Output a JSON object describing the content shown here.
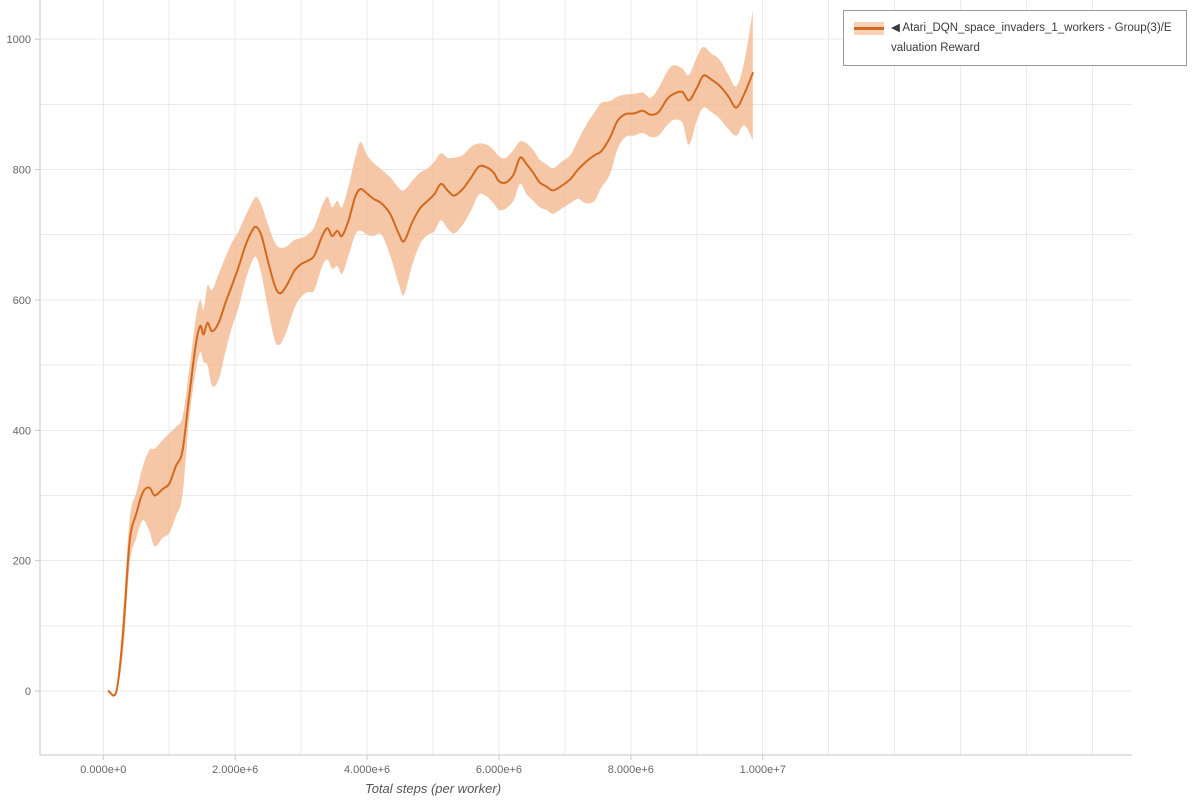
{
  "chart_data": {
    "type": "line",
    "title": "",
    "xlabel": "Total steps (per worker)",
    "ylabel": "",
    "grid": true,
    "legend": {
      "position": "top-right",
      "collapse_icon": "◀",
      "label": "Atari_DQN_space_invaders_1_workers - Group(3)/Evaluation Reward"
    },
    "colors": {
      "line": "#d2691e",
      "band": "#f1b488",
      "band_opacity": 0.75,
      "grid": "#e9e9e9",
      "axis": "#c6c6c6",
      "tick_text": "#666666",
      "legend_border": "#9b9b9b"
    },
    "axes": {
      "x": {
        "min": -0.96,
        "max": 15.6,
        "grid_step": 1,
        "ticks": [
          {
            "v": 0,
            "label": "0.000e+0"
          },
          {
            "v": 2,
            "label": "2.000e+6"
          },
          {
            "v": 4,
            "label": "4.000e+6"
          },
          {
            "v": 6,
            "label": "6.000e+6"
          },
          {
            "v": 8,
            "label": "8.000e+6"
          },
          {
            "v": 10,
            "label": "1.000e+7"
          }
        ]
      },
      "y": {
        "min": -98,
        "max": 1060,
        "grid_step": 100,
        "ticks": [
          0,
          200,
          400,
          600,
          800,
          1000
        ]
      }
    },
    "series": [
      {
        "name": "Atari_DQN_space_invaders_1_workers - Group(3)/Evaluation Reward",
        "x_unit": "1e6 steps",
        "x": [
          0.08,
          0.2,
          0.3,
          0.4,
          0.5,
          0.6,
          0.7,
          0.78,
          0.9,
          1.0,
          1.1,
          1.2,
          1.3,
          1.4,
          1.47,
          1.52,
          1.58,
          1.65,
          1.75,
          1.85,
          1.95,
          2.05,
          2.15,
          2.25,
          2.32,
          2.4,
          2.5,
          2.6,
          2.68,
          2.78,
          2.9,
          3.0,
          3.1,
          3.2,
          3.32,
          3.4,
          3.47,
          3.55,
          3.62,
          3.72,
          3.82,
          3.9,
          4.0,
          4.1,
          4.22,
          4.35,
          4.48,
          4.56,
          4.68,
          4.8,
          4.92,
          5.02,
          5.12,
          5.22,
          5.32,
          5.45,
          5.58,
          5.7,
          5.82,
          5.92,
          6.0,
          6.1,
          6.22,
          6.32,
          6.42,
          6.52,
          6.62,
          6.72,
          6.82,
          6.95,
          7.08,
          7.2,
          7.32,
          7.45,
          7.55,
          7.68,
          7.8,
          7.92,
          8.05,
          8.18,
          8.3,
          8.42,
          8.55,
          8.65,
          8.78,
          8.88,
          9.0,
          9.1,
          9.22,
          9.35,
          9.48,
          9.6,
          9.72,
          9.85
        ],
        "mean": [
          0,
          0,
          90,
          230,
          272,
          305,
          312,
          300,
          310,
          318,
          345,
          368,
          450,
          530,
          560,
          547,
          565,
          552,
          565,
          595,
          622,
          650,
          682,
          705,
          712,
          698,
          658,
          622,
          610,
          622,
          645,
          655,
          660,
          668,
          698,
          710,
          698,
          706,
          698,
          722,
          758,
          770,
          763,
          755,
          748,
          732,
          702,
          690,
          718,
          740,
          752,
          762,
          778,
          768,
          760,
          770,
          788,
          805,
          803,
          795,
          782,
          780,
          792,
          818,
          808,
          795,
          780,
          774,
          768,
          775,
          785,
          800,
          812,
          822,
          828,
          848,
          875,
          885,
          886,
          890,
          884,
          888,
          908,
          916,
          919,
          906,
          925,
          944,
          938,
          928,
          912,
          895,
          916,
          948
        ],
        "low": [
          0,
          0,
          60,
          195,
          235,
          262,
          245,
          222,
          235,
          242,
          268,
          300,
          415,
          490,
          520,
          505,
          500,
          468,
          478,
          520,
          558,
          588,
          628,
          658,
          665,
          638,
          585,
          538,
          532,
          552,
          588,
          605,
          612,
          615,
          652,
          662,
          648,
          652,
          640,
          668,
          700,
          706,
          700,
          698,
          700,
          668,
          625,
          608,
          652,
          685,
          700,
          705,
          722,
          710,
          702,
          715,
          738,
          762,
          758,
          748,
          738,
          740,
          752,
          778,
          762,
          752,
          742,
          738,
          732,
          740,
          748,
          755,
          748,
          752,
          772,
          792,
          832,
          850,
          852,
          856,
          850,
          852,
          868,
          876,
          872,
          838,
          875,
          895,
          888,
          878,
          862,
          852,
          868,
          845
        ],
        "high": [
          0,
          0,
          120,
          265,
          305,
          345,
          370,
          372,
          385,
          395,
          405,
          420,
          490,
          570,
          600,
          585,
          622,
          615,
          640,
          665,
          688,
          705,
          728,
          748,
          758,
          745,
          715,
          688,
          680,
          682,
          692,
          695,
          700,
          712,
          745,
          758,
          742,
          752,
          742,
          775,
          818,
          842,
          822,
          810,
          800,
          788,
          772,
          768,
          782,
          795,
          802,
          812,
          825,
          818,
          818,
          822,
          835,
          840,
          838,
          830,
          820,
          818,
          830,
          843,
          840,
          830,
          815,
          808,
          802,
          812,
          822,
          845,
          868,
          888,
          902,
          905,
          912,
          915,
          916,
          918,
          910,
          925,
          950,
          960,
          955,
          945,
          972,
          988,
          978,
          968,
          945,
          928,
          965,
          1044
        ]
      }
    ]
  }
}
